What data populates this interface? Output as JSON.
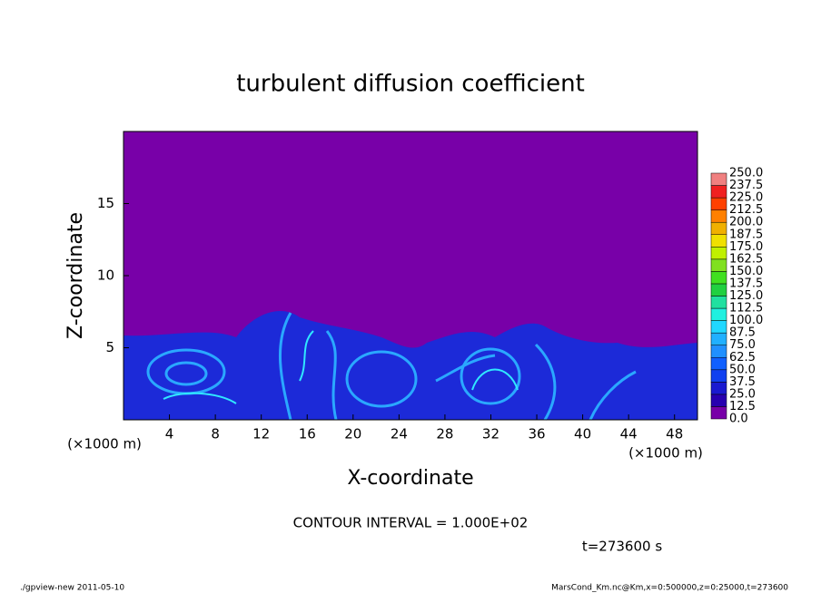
{
  "chart_data": {
    "type": "contour",
    "title": "turbulent diffusion coefficient",
    "xlabel": "X-coordinate",
    "ylabel": "Z-coordinate",
    "xunit": "(×1000 m)",
    "yunit": "(×1000 m)",
    "xlim": [
      0,
      50
    ],
    "xticks": [
      4,
      8,
      12,
      16,
      20,
      24,
      28,
      32,
      36,
      40,
      44,
      48
    ],
    "ylim": [
      0,
      20
    ],
    "yticks": [
      5,
      10,
      15
    ],
    "colorbar": {
      "levels": [
        {
          "value": 0,
          "label": "0.0"
        },
        {
          "value": 12.5,
          "label": "12.5"
        },
        {
          "value": 25,
          "label": "25.0"
        },
        {
          "value": 37.5,
          "label": "37.5"
        },
        {
          "value": 50,
          "label": "50.0"
        },
        {
          "value": 62.5,
          "label": "62.5"
        },
        {
          "value": 75,
          "label": "75.0"
        },
        {
          "value": 87.5,
          "label": "87.5"
        },
        {
          "value": 100,
          "label": "100.0"
        },
        {
          "value": 112.5,
          "label": "112.5"
        },
        {
          "value": 125,
          "label": "125.0"
        },
        {
          "value": 137.5,
          "label": "137.5"
        },
        {
          "value": 150,
          "label": "150.0"
        },
        {
          "value": 162.5,
          "label": "162.5"
        },
        {
          "value": 175,
          "label": "175.0"
        },
        {
          "value": 187.5,
          "label": "187.5"
        },
        {
          "value": 200,
          "label": "200.0"
        },
        {
          "value": 212.5,
          "label": "212.5"
        },
        {
          "value": 225,
          "label": "225.0"
        },
        {
          "value": 237.5,
          "label": "237.5"
        },
        {
          "value": 250,
          "label": "250.0"
        }
      ],
      "colors": [
        "#7800a8",
        "#2800b0",
        "#1a1ad0",
        "#1040f0",
        "#1060ff",
        "#2090ff",
        "#20b0ff",
        "#20d8ff",
        "#20f0e0",
        "#20e0a0",
        "#20d040",
        "#40e020",
        "#80e020",
        "#c0f000",
        "#f0e000",
        "#f0b000",
        "#ff8000",
        "#ff4000",
        "#f02020",
        "#f08080"
      ]
    },
    "contour_interval": "CONTOUR INTERVAL = 1.000E+02",
    "time": "t=273600 s",
    "footer_left": "./gpview-new  2011-05-10",
    "footer_right": "MarsCond_Km.nc@Km,x=0:500000,z=0:25000,t=273600"
  }
}
